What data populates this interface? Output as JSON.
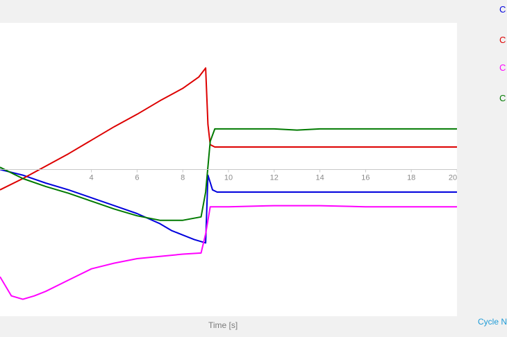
{
  "chart_data": {
    "type": "line",
    "title": "",
    "xlabel": "Time [s]",
    "ylabel": "",
    "xlim": [
      0,
      20
    ],
    "ylim": [
      -1.3,
      1.3
    ],
    "x_ticks": [
      "4",
      "6",
      "8",
      "10",
      "12",
      "14",
      "16",
      "18",
      "20"
    ],
    "grid": false,
    "legend_position": "right",
    "series": [
      {
        "name": "C",
        "color": "#0000dd",
        "x": [
          0,
          1,
          2,
          3,
          4,
          5,
          6,
          7,
          7.5,
          8,
          8.5,
          9,
          9.1,
          9.3,
          9.5,
          10,
          12,
          14,
          16,
          18,
          20
        ],
        "y": [
          0.0,
          -0.05,
          -0.12,
          -0.18,
          -0.25,
          -0.32,
          -0.39,
          -0.48,
          -0.54,
          -0.58,
          -0.62,
          -0.65,
          -0.05,
          -0.18,
          -0.2,
          -0.2,
          -0.2,
          -0.2,
          -0.2,
          -0.2,
          -0.2
        ]
      },
      {
        "name": "C",
        "color": "#dd0000",
        "x": [
          0,
          1,
          2,
          3,
          4,
          5,
          6,
          7,
          8,
          8.7,
          9.0,
          9.1,
          9.2,
          9.4,
          10,
          12,
          14,
          16,
          18,
          20
        ],
        "y": [
          -0.18,
          -0.08,
          0.03,
          0.14,
          0.26,
          0.38,
          0.49,
          0.61,
          0.72,
          0.82,
          0.9,
          0.4,
          0.22,
          0.2,
          0.2,
          0.2,
          0.2,
          0.2,
          0.2,
          0.2
        ]
      },
      {
        "name": "C",
        "color": "#ff00ff",
        "x": [
          0,
          0.5,
          1,
          1.5,
          2,
          3,
          4,
          5,
          6,
          7,
          8,
          8.8,
          9.0,
          9.2,
          10,
          12,
          14,
          16,
          18,
          20
        ],
        "y": [
          -0.95,
          -1.12,
          -1.15,
          -1.12,
          -1.08,
          -0.98,
          -0.88,
          -0.83,
          -0.79,
          -0.77,
          -0.75,
          -0.74,
          -0.57,
          -0.33,
          -0.33,
          -0.32,
          -0.32,
          -0.33,
          -0.33,
          -0.33
        ]
      },
      {
        "name": "C",
        "color": "#007a00",
        "x": [
          0,
          1,
          2,
          3,
          4,
          5,
          6,
          7,
          8,
          8.8,
          9.0,
          9.2,
          9.4,
          10,
          12,
          13,
          14,
          16,
          18,
          20
        ],
        "y": [
          0.02,
          -0.08,
          -0.15,
          -0.21,
          -0.28,
          -0.35,
          -0.41,
          -0.45,
          -0.45,
          -0.42,
          -0.2,
          0.25,
          0.36,
          0.36,
          0.36,
          0.35,
          0.36,
          0.36,
          0.36,
          0.36
        ]
      }
    ]
  },
  "legend": [
    {
      "label": "C",
      "color": "#0000dd"
    },
    {
      "label": "C",
      "color": "#dd0000"
    },
    {
      "label": "C",
      "color": "#ff00ff"
    },
    {
      "label": "C",
      "color": "#007a00"
    }
  ],
  "footer": {
    "cycle_label": "Cycle N",
    "cycle_color": "#1e9bd7"
  }
}
